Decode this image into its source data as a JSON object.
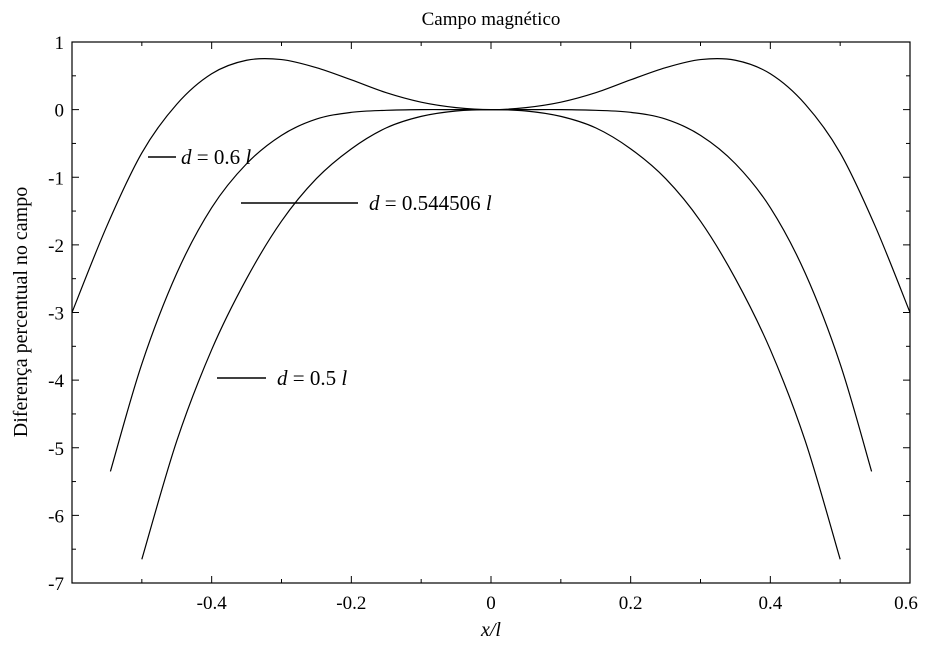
{
  "chart_data": {
    "type": "line",
    "title": "Campo magnético",
    "xlabel": "x/l",
    "ylabel": "Diferença percentual no campo",
    "xlim": [
      -0.6,
      0.6
    ],
    "ylim": [
      -7,
      1
    ],
    "xticks": [
      -0.4,
      -0.2,
      0,
      0.2,
      0.4,
      0.6
    ],
    "xtick_labels": [
      "-0.4",
      "-0.2",
      "0",
      "0.2",
      "0.4",
      "0.6"
    ],
    "yticks": [
      -7,
      -6,
      -5,
      -4,
      -3,
      -2,
      -1,
      0,
      1
    ],
    "ytick_labels": [
      "-7",
      "-6",
      "-5",
      "-4",
      "-3",
      "-2",
      "-1",
      "0",
      "1"
    ],
    "grid": false,
    "series": [
      {
        "x": [
          -0.6,
          -0.55,
          -0.5,
          -0.45,
          -0.4,
          -0.35,
          -0.3,
          -0.25,
          -0.2,
          -0.15,
          -0.1,
          -0.05,
          0,
          0.05,
          0.1,
          0.15,
          0.2,
          0.25,
          0.3,
          0.35,
          0.4,
          0.45,
          0.5,
          0.55,
          0.6
        ],
        "y": [
          -3.0,
          -1.72,
          -0.64,
          0.08,
          0.53,
          0.73,
          0.74,
          0.62,
          0.44,
          0.25,
          0.11,
          0.03,
          0.0,
          0.03,
          0.11,
          0.25,
          0.44,
          0.62,
          0.74,
          0.73,
          0.53,
          0.08,
          -0.64,
          -1.72,
          -3.0
        ],
        "annotation": {
          "d_label": "d",
          "value_text": " = 0.6 ",
          "unit_label": "l"
        }
      },
      {
        "x": [
          -0.545,
          -0.5,
          -0.45,
          -0.4,
          -0.35,
          -0.3,
          -0.25,
          -0.2,
          -0.15,
          -0.1,
          -0.05,
          0,
          0.05,
          0.1,
          0.15,
          0.2,
          0.25,
          0.3,
          0.35,
          0.4,
          0.45,
          0.5,
          0.545
        ],
        "y": [
          -5.35,
          -3.76,
          -2.42,
          -1.45,
          -0.8,
          -0.38,
          -0.14,
          -0.04,
          -0.01,
          0.0,
          0.0,
          0.0,
          0.0,
          0.0,
          -0.01,
          -0.04,
          -0.14,
          -0.38,
          -0.8,
          -1.45,
          -2.42,
          -3.76,
          -5.35
        ],
        "annotation": {
          "d_label": "d",
          "value_text": " = 0.544506 ",
          "unit_label": "l"
        }
      },
      {
        "x": [
          -0.5,
          -0.45,
          -0.4,
          -0.35,
          -0.3,
          -0.25,
          -0.2,
          -0.15,
          -0.1,
          -0.05,
          0,
          0.05,
          0.1,
          0.15,
          0.2,
          0.25,
          0.3,
          0.35,
          0.4,
          0.45,
          0.5
        ],
        "y": [
          -6.65,
          -4.9,
          -3.55,
          -2.5,
          -1.65,
          -1.02,
          -0.58,
          -0.27,
          -0.1,
          -0.02,
          0.0,
          -0.02,
          -0.1,
          -0.27,
          -0.58,
          -1.02,
          -1.65,
          -2.5,
          -3.55,
          -4.9,
          -6.65
        ],
        "annotation": {
          "d_label": "d",
          "value_text": " = 0.5 ",
          "unit_label": "l"
        }
      }
    ]
  }
}
